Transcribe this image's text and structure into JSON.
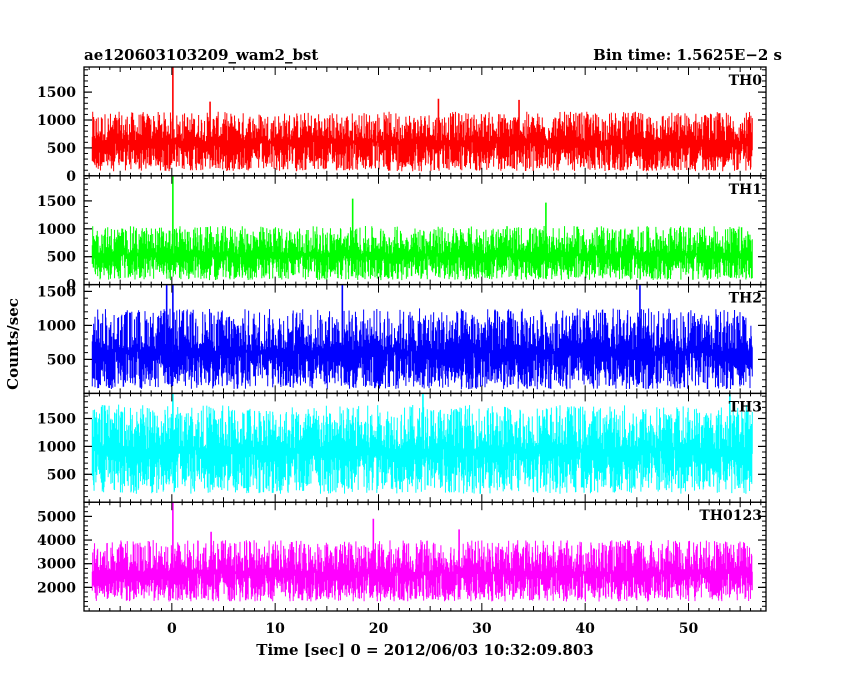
{
  "header": {
    "title": "ae120603103209_wam2_bst",
    "bin_time": "Bin time: 1.5625E−2 s"
  },
  "chart_data": {
    "type": "line",
    "xlabel": "Time [sec] 0 = 2012/06/03 10:32:09.803",
    "ylabel": "Counts/sec",
    "xlim": [
      -8.5,
      57.5
    ],
    "x_ticks": [
      0,
      10,
      20,
      30,
      40,
      50
    ],
    "data_x_range": [
      -7.7,
      56.2
    ],
    "panels": [
      {
        "name": "TH0",
        "color": "#ff0000",
        "ylim": [
          0,
          1950
        ],
        "ticks": [
          0,
          500,
          1000,
          1500
        ],
        "mean": 620,
        "amp_low": 80,
        "amp_high": 1150,
        "peaks": [
          {
            "x": 0.1,
            "y": 1950
          },
          {
            "x": 3.7,
            "y": 1330
          },
          {
            "x": 25.8,
            "y": 1380
          },
          {
            "x": 33.6,
            "y": 1360
          }
        ]
      },
      {
        "name": "TH1",
        "color": "#00ff00",
        "ylim": [
          0,
          1950
        ],
        "ticks": [
          0,
          500,
          1000,
          1500
        ],
        "mean": 550,
        "amp_low": 80,
        "amp_high": 1050,
        "peaks": [
          {
            "x": 0.1,
            "y": 1950
          },
          {
            "x": 17.5,
            "y": 1540
          },
          {
            "x": 36.2,
            "y": 1470
          }
        ]
      },
      {
        "name": "TH2",
        "color": "#0000ff",
        "ylim": [
          0,
          1600
        ],
        "ticks": [
          500,
          1000,
          1500
        ],
        "mean": 620,
        "amp_low": 60,
        "amp_high": 1250,
        "peaks": [
          {
            "x": -0.5,
            "y": 1600
          },
          {
            "x": 0.1,
            "y": 1600
          },
          {
            "x": 16.5,
            "y": 1600
          },
          {
            "x": 45.3,
            "y": 1600
          }
        ]
      },
      {
        "name": "TH3",
        "color": "#00ffff",
        "ylim": [
          0,
          1950
        ],
        "ticks": [
          500,
          1000,
          1500
        ],
        "mean": 950,
        "amp_low": 150,
        "amp_high": 1750,
        "peaks": [
          {
            "x": 0.1,
            "y": 1950
          },
          {
            "x": 24.3,
            "y": 1950
          },
          {
            "x": 54.0,
            "y": 1950
          }
        ]
      },
      {
        "name": "TH0123",
        "color": "#ff00ff",
        "ylim": [
          1000,
          5600
        ],
        "ticks": [
          2000,
          3000,
          4000,
          5000
        ],
        "mean": 2650,
        "amp_low": 1400,
        "amp_high": 4000,
        "peaks": [
          {
            "x": 0.1,
            "y": 5600
          },
          {
            "x": 3.8,
            "y": 4350
          },
          {
            "x": 19.5,
            "y": 4900
          },
          {
            "x": 27.8,
            "y": 4450
          }
        ]
      }
    ]
  }
}
